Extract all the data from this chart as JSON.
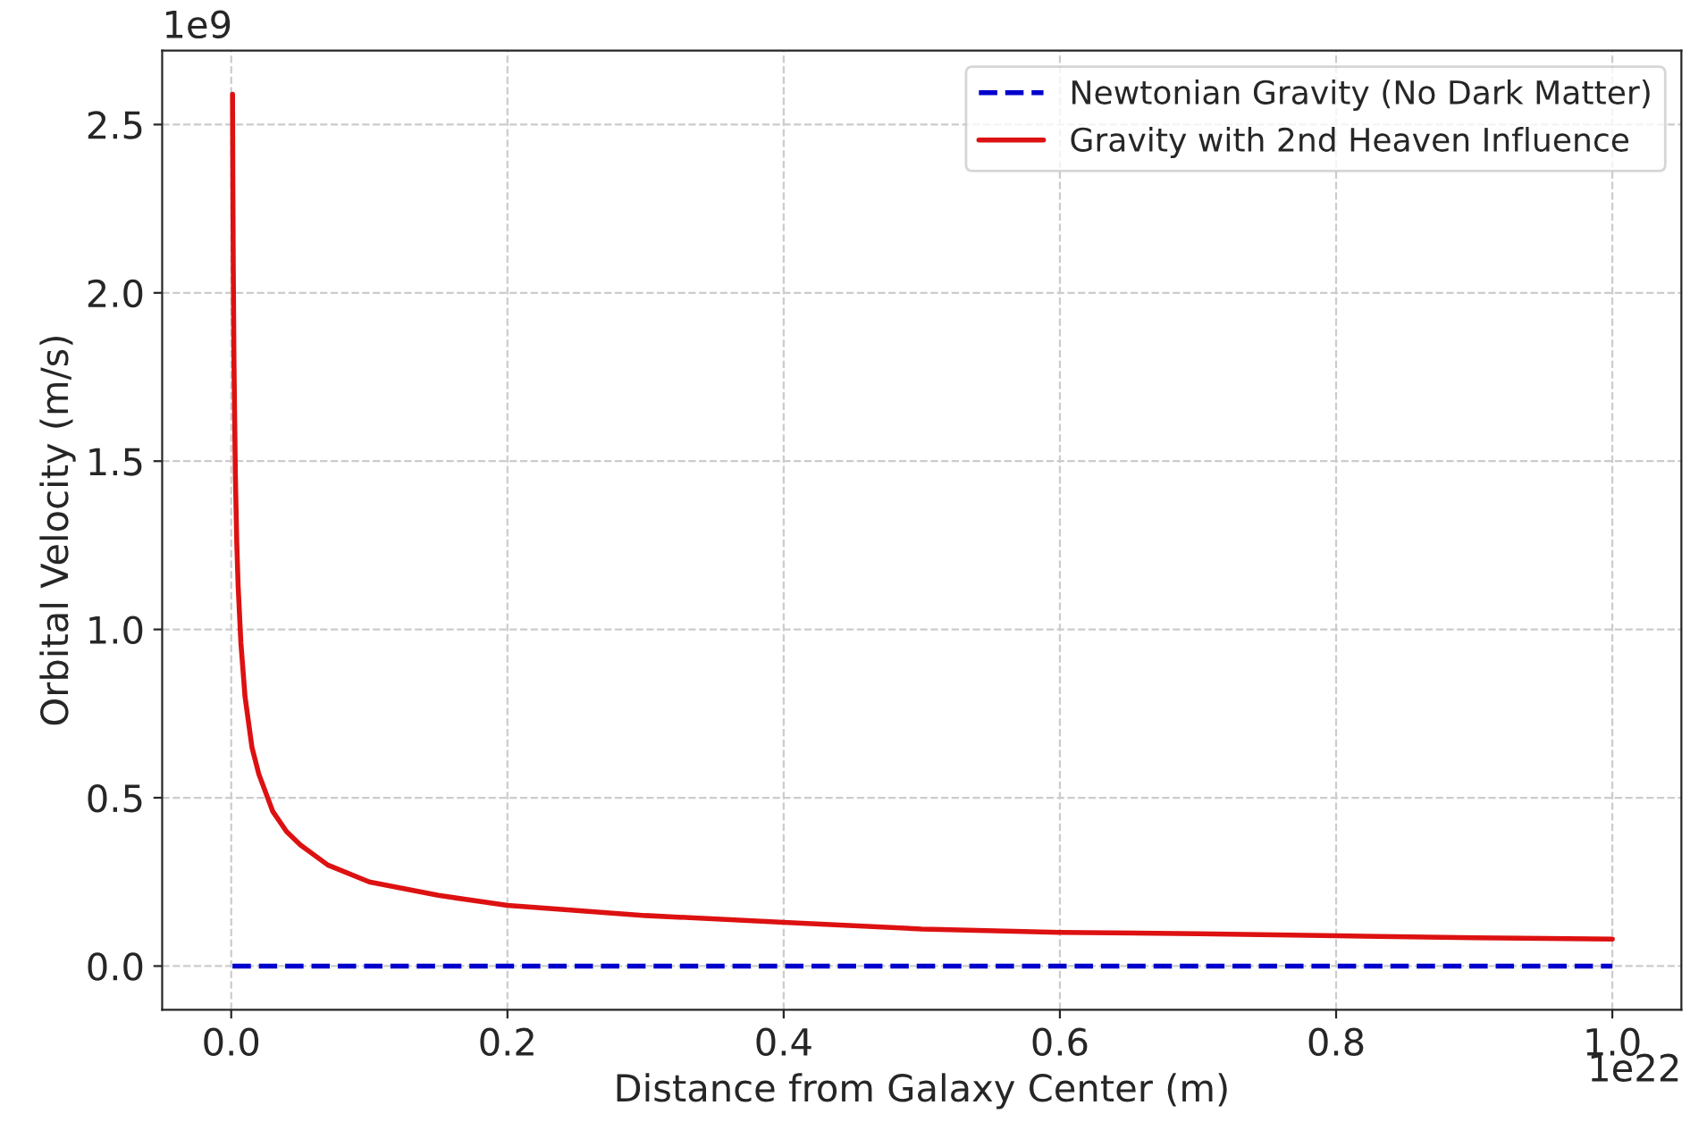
{
  "chart_data": {
    "type": "line",
    "xlabel": "Distance from Galaxy Center (m)",
    "ylabel": "Orbital Velocity (m/s)",
    "series": [
      {
        "name": "Newtonian Gravity (No Dark Matter)",
        "color": "#0000cc",
        "line_style": "dashed",
        "x": [
          0.00095,
          1.0
        ],
        "values": [
          0.0,
          0.0
        ]
      },
      {
        "name": "Gravity with 2nd Heaven Influence",
        "color": "#dd1111",
        "line_style": "solid",
        "x": [
          0.00095,
          0.0012,
          0.0015,
          0.002,
          0.003,
          0.004,
          0.005,
          0.007,
          0.01,
          0.015,
          0.02,
          0.03,
          0.04,
          0.05,
          0.07,
          0.1,
          0.15,
          0.2,
          0.3,
          0.4,
          0.5,
          0.6,
          0.7,
          0.8,
          0.9,
          1.0
        ],
        "values": [
          2.59,
          2.31,
          2.07,
          1.79,
          1.46,
          1.26,
          1.13,
          0.96,
          0.8,
          0.65,
          0.57,
          0.46,
          0.4,
          0.36,
          0.3,
          0.25,
          0.21,
          0.18,
          0.15,
          0.13,
          0.11,
          0.1,
          0.096,
          0.09,
          0.084,
          0.08
        ]
      }
    ],
    "xlim": [
      -0.05,
      1.05
    ],
    "ylim": [
      -0.13,
      2.72
    ],
    "xticks": [
      {
        "value": 0,
        "label": "0.0"
      },
      0.2,
      0.4,
      0.6,
      0.8,
      {
        "value": 1,
        "label": "1.0"
      }
    ],
    "yticks": [
      {
        "value": 0,
        "label": "0.0"
      },
      0.5,
      {
        "value": 1,
        "label": "1.0"
      },
      1.5,
      {
        "value": 2,
        "label": "2.0"
      },
      2.5
    ],
    "annotations": [
      "1e9",
      "1e22"
    ],
    "grid": true,
    "legend": "top right"
  }
}
